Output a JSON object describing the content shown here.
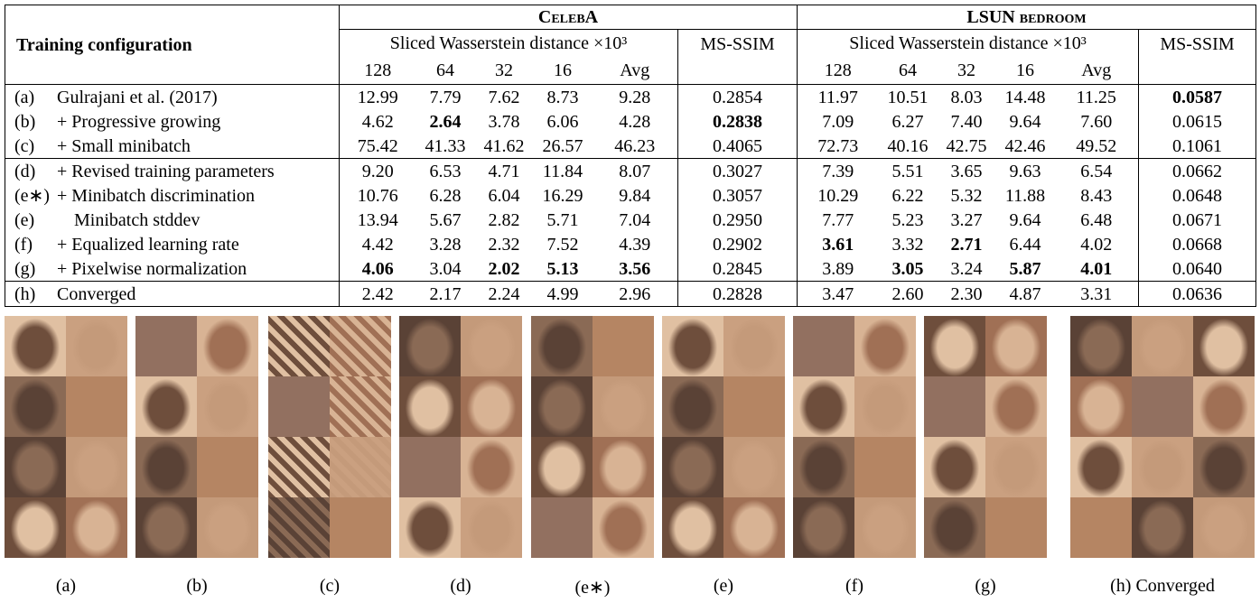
{
  "table": {
    "config_header": "Training configuration",
    "groups": [
      {
        "name": "CelebA",
        "swd_header": "Sliced Wasserstein distance ×10³",
        "msssim_header": "MS-SSIM",
        "resolutions": [
          "128",
          "64",
          "32",
          "16",
          "Avg"
        ]
      },
      {
        "name": "LSUN bedroom",
        "swd_header": "Sliced Wasserstein distance ×10³",
        "msssim_header": "MS-SSIM",
        "resolutions": [
          "128",
          "64",
          "32",
          "16",
          "Avg"
        ]
      }
    ],
    "sections": [
      [
        {
          "id": "(a)",
          "name": "Gulrajani et al. (2017)",
          "cells": [
            {
              "text": "12.99"
            },
            {
              "text": "7.79"
            },
            {
              "text": "7.62"
            },
            {
              "text": "8.73"
            },
            {
              "text": "9.28"
            },
            {
              "text": "0.2854"
            },
            {
              "text": "11.97"
            },
            {
              "text": "10.51"
            },
            {
              "text": "8.03"
            },
            {
              "text": "14.48"
            },
            {
              "text": "11.25"
            },
            {
              "text": "0.0587",
              "bold": true
            }
          ]
        },
        {
          "id": "(b)",
          "name": "+ Progressive growing",
          "cells": [
            {
              "text": "4.62"
            },
            {
              "text": "2.64",
              "bold": true
            },
            {
              "text": "3.78"
            },
            {
              "text": "6.06"
            },
            {
              "text": "4.28"
            },
            {
              "text": "0.2838",
              "bold": true
            },
            {
              "text": "7.09"
            },
            {
              "text": "6.27"
            },
            {
              "text": "7.40"
            },
            {
              "text": "9.64"
            },
            {
              "text": "7.60"
            },
            {
              "text": "0.0615"
            }
          ]
        },
        {
          "id": "(c)",
          "name": "+ Small minibatch",
          "cells": [
            {
              "text": "75.42"
            },
            {
              "text": "41.33"
            },
            {
              "text": "41.62"
            },
            {
              "text": "26.57"
            },
            {
              "text": "46.23"
            },
            {
              "text": "0.4065"
            },
            {
              "text": "72.73"
            },
            {
              "text": "40.16"
            },
            {
              "text": "42.75"
            },
            {
              "text": "42.46"
            },
            {
              "text": "49.52"
            },
            {
              "text": "0.1061"
            }
          ]
        }
      ],
      [
        {
          "id": "(d)",
          "name": "+ Revised training parameters",
          "cells": [
            {
              "text": "9.20"
            },
            {
              "text": "6.53"
            },
            {
              "text": "4.71"
            },
            {
              "text": "11.84"
            },
            {
              "text": "8.07"
            },
            {
              "text": "0.3027"
            },
            {
              "text": "7.39"
            },
            {
              "text": "5.51"
            },
            {
              "text": "3.65"
            },
            {
              "text": "9.63"
            },
            {
              "text": "6.54"
            },
            {
              "text": "0.0662"
            }
          ]
        },
        {
          "id": "(e∗)",
          "name": "+ Minibatch discrimination",
          "cells": [
            {
              "text": "10.76"
            },
            {
              "text": "6.28"
            },
            {
              "text": "6.04"
            },
            {
              "text": "16.29"
            },
            {
              "text": "9.84"
            },
            {
              "text": "0.3057"
            },
            {
              "text": "10.29"
            },
            {
              "text": "6.22"
            },
            {
              "text": "5.32"
            },
            {
              "text": "11.88"
            },
            {
              "text": "8.43"
            },
            {
              "text": "0.0648"
            }
          ]
        },
        {
          "id": "(e)",
          "name": "Minibatch stddev",
          "indent": true,
          "cells": [
            {
              "text": "13.94"
            },
            {
              "text": "5.67"
            },
            {
              "text": "2.82"
            },
            {
              "text": "5.71"
            },
            {
              "text": "7.04"
            },
            {
              "text": "0.2950"
            },
            {
              "text": "7.77"
            },
            {
              "text": "5.23"
            },
            {
              "text": "3.27"
            },
            {
              "text": "9.64"
            },
            {
              "text": "6.48"
            },
            {
              "text": "0.0671"
            }
          ]
        },
        {
          "id": "(f)",
          "name": "+ Equalized learning rate",
          "cells": [
            {
              "text": "4.42"
            },
            {
              "text": "3.28"
            },
            {
              "text": "2.32"
            },
            {
              "text": "7.52"
            },
            {
              "text": "4.39"
            },
            {
              "text": "0.2902"
            },
            {
              "text": "3.61",
              "bold": true
            },
            {
              "text": "3.32"
            },
            {
              "text": "2.71",
              "bold": true
            },
            {
              "text": "6.44"
            },
            {
              "text": "4.02"
            },
            {
              "text": "0.0668"
            }
          ]
        },
        {
          "id": "(g)",
          "name": "+ Pixelwise normalization",
          "cells": [
            {
              "text": "4.06",
              "bold": true
            },
            {
              "text": "3.04"
            },
            {
              "text": "2.02",
              "bold": true
            },
            {
              "text": "5.13",
              "bold": true
            },
            {
              "text": "3.56",
              "bold": true
            },
            {
              "text": "0.2845"
            },
            {
              "text": "3.89"
            },
            {
              "text": "3.05",
              "bold": true
            },
            {
              "text": "3.24"
            },
            {
              "text": "5.87",
              "bold": true
            },
            {
              "text": "4.01",
              "bold": true
            },
            {
              "text": "0.0640"
            }
          ]
        }
      ],
      [
        {
          "id": "(h)",
          "name": "Converged",
          "cells": [
            {
              "text": "2.42"
            },
            {
              "text": "2.17"
            },
            {
              "text": "2.24"
            },
            {
              "text": "4.99"
            },
            {
              "text": "2.96"
            },
            {
              "text": "0.2828"
            },
            {
              "text": "3.47"
            },
            {
              "text": "2.60"
            },
            {
              "text": "2.30"
            },
            {
              "text": "4.87"
            },
            {
              "text": "3.31"
            },
            {
              "text": "0.0636"
            }
          ]
        }
      ]
    ]
  },
  "figures": [
    {
      "caption": "(a)"
    },
    {
      "caption": "(b)"
    },
    {
      "caption": "(c)"
    },
    {
      "caption": "(d)"
    },
    {
      "caption": "(e∗)"
    },
    {
      "caption": "(e)"
    },
    {
      "caption": "(f)"
    },
    {
      "caption": "(g)"
    },
    {
      "caption": "(h) Converged"
    }
  ]
}
